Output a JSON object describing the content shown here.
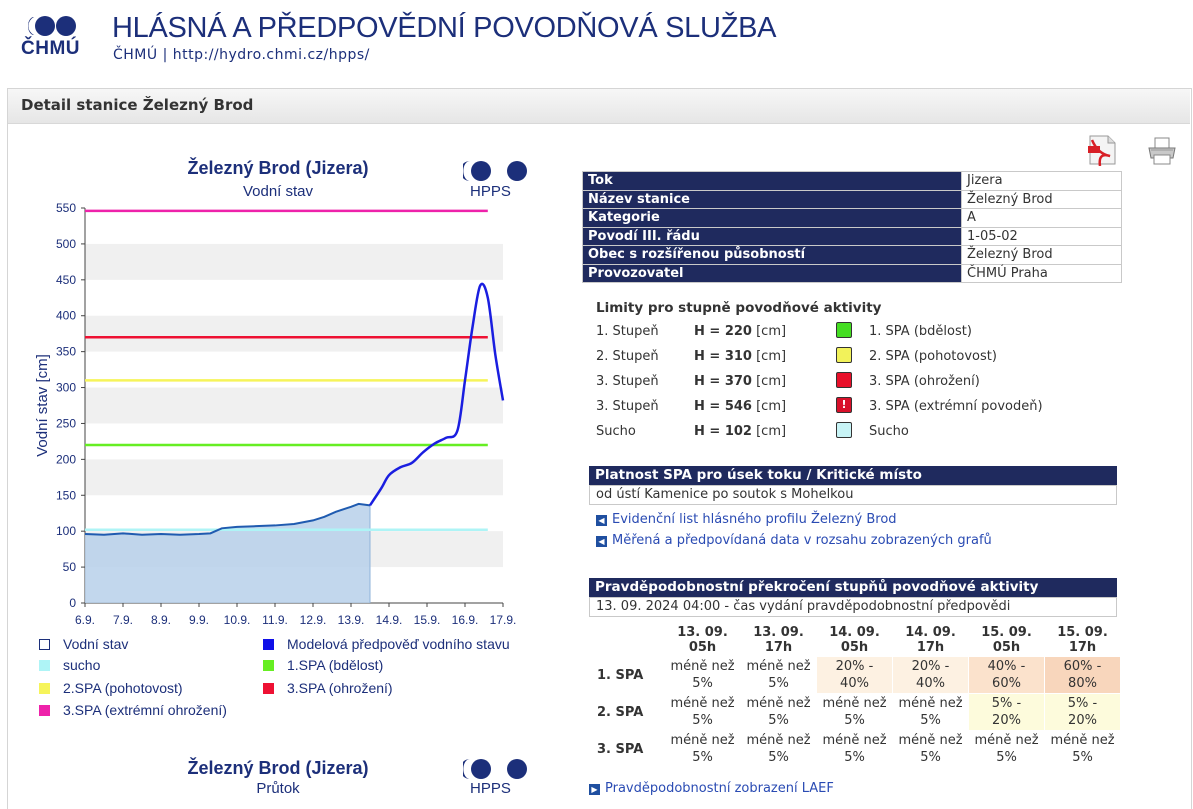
{
  "header": {
    "logo_text": "ČHMÚ",
    "title": "HLÁSNÁ A PŘEDPOVĚDNÍ POVODŇOVÁ SLUŽBA",
    "subtitle": "ČHMÚ   |   http://hydro.chmi.cz/hpps/"
  },
  "panel": {
    "title": "Detail stanice Železný Brod"
  },
  "icons": {
    "pdf": "pdf-icon",
    "print": "printer-icon"
  },
  "station": [
    {
      "key": "Tok",
      "value": "Jizera"
    },
    {
      "key": "Název stanice",
      "value": "Železný Brod"
    },
    {
      "key": "Kategorie",
      "value": "A"
    },
    {
      "key": "Povodí III. řádu",
      "value": "1-05-02"
    },
    {
      "key": "Obec s rozšířenou působností",
      "value": "Železný Brod"
    },
    {
      "key": "Provozovatel",
      "value": "ČHMÚ Praha"
    }
  ],
  "limits": {
    "title": "Limity pro stupně povodňové aktivity",
    "rows": [
      {
        "name": "1. Stupeň",
        "h_label": "H = 220",
        "unit": " [cm]",
        "color": "#44dd22",
        "label": "1. SPA (bdělost)",
        "icon": ""
      },
      {
        "name": "2. Stupeň",
        "h_label": "H = 310",
        "unit": " [cm]",
        "color": "#f2f25a",
        "label": "2. SPA (pohotovost)",
        "icon": ""
      },
      {
        "name": "3. Stupeň",
        "h_label": "H = 370",
        "unit": " [cm]",
        "color": "#e8102a",
        "label": "3. SPA (ohrožení)",
        "icon": ""
      },
      {
        "name": "3. Stupeň",
        "h_label": "H = 546",
        "unit": " [cm]",
        "color": "#d8102a",
        "label": "3. SPA (extrémní povodeň)",
        "icon": "!"
      },
      {
        "name": "Sucho",
        "h_label": "H = 102",
        "unit": " [cm]",
        "color": "#c8f4f6",
        "label": "Sucho",
        "icon": ""
      }
    ]
  },
  "validity": {
    "title": "Platnost SPA pro úsek toku / Kritické místo",
    "text": "od ústí Kamenice po soutok s Mohelkou"
  },
  "links": [
    "Evidenční list hlásného profilu Železný Brod",
    "Měřená a předpovídaná data v rozsahu zobrazených grafů"
  ],
  "probability": {
    "title": "Pravděpodobnostní překročení stupňů povodňové aktivity",
    "issued": "13. 09. 2024 04:00 - čas vydání pravděpodobnostní předpovědi",
    "columns": [
      [
        "13. 09.",
        "05h"
      ],
      [
        "13. 09.",
        "17h"
      ],
      [
        "14. 09.",
        "05h"
      ],
      [
        "14. 09.",
        "17h"
      ],
      [
        "15. 09.",
        "05h"
      ],
      [
        "15. 09.",
        "17h"
      ]
    ],
    "rows": [
      {
        "label": "1. SPA",
        "cells": [
          [
            "méně než",
            "5%"
          ],
          [
            "méně než",
            "5%"
          ],
          [
            "20% -",
            "40%"
          ],
          [
            "20% -",
            "40%"
          ],
          [
            "40% -",
            "60%"
          ],
          [
            "60% -",
            "80%"
          ]
        ],
        "colors": [
          "#ffffff",
          "#ffffff",
          "#fdf1e2",
          "#fdf1e2",
          "#fbe2cc",
          "#f8d6bc"
        ]
      },
      {
        "label": "2. SPA",
        "cells": [
          [
            "méně než",
            "5%"
          ],
          [
            "méně než",
            "5%"
          ],
          [
            "méně než",
            "5%"
          ],
          [
            "méně než",
            "5%"
          ],
          [
            "5% -",
            "20%"
          ],
          [
            "5% -",
            "20%"
          ]
        ],
        "colors": [
          "#ffffff",
          "#ffffff",
          "#ffffff",
          "#ffffff",
          "#fdfbdc",
          "#fdfbdc"
        ]
      },
      {
        "label": "3. SPA",
        "cells": [
          [
            "méně než",
            "5%"
          ],
          [
            "méně než",
            "5%"
          ],
          [
            "méně než",
            "5%"
          ],
          [
            "méně než",
            "5%"
          ],
          [
            "méně než",
            "5%"
          ],
          [
            "méně než",
            "5%"
          ]
        ],
        "colors": [
          "#ffffff",
          "#ffffff",
          "#ffffff",
          "#ffffff",
          "#ffffff",
          "#ffffff"
        ]
      }
    ],
    "link": "Pravděpodobnostní zobrazení LAEF"
  },
  "chart_data": {
    "type": "line",
    "title": "Železný Brod (Jizera)",
    "subtitle": "Vodní stav",
    "brand": "HPPS",
    "ylabel": "Vodní stav [cm]",
    "ylim": [
      0,
      550
    ],
    "yticks": [
      0,
      50,
      100,
      150,
      200,
      250,
      300,
      350,
      400,
      450,
      500,
      550
    ],
    "xticks": [
      "6.9.",
      "7.9.",
      "8.9.",
      "9.9.",
      "10.9.",
      "11.9.",
      "12.9.",
      "13.9.",
      "14.9.",
      "15.9.",
      "16.9.",
      "17.9."
    ],
    "thresholds": [
      {
        "name": "sucho",
        "value": 102,
        "color": "#aef4f6"
      },
      {
        "name": "1.SPA (bdělost)",
        "value": 220,
        "color": "#66ee22"
      },
      {
        "name": "2.SPA (pohotovost)",
        "value": 310,
        "color": "#f6f45a"
      },
      {
        "name": "3.SPA (ohrožení)",
        "value": 370,
        "color": "#ee1133"
      },
      {
        "name": "3.SPA (extrémní ohrožení)",
        "value": 546,
        "color": "#ee22aa"
      }
    ],
    "series": [
      {
        "name": "Vodní stav",
        "color": "#1f5bb0",
        "fill": "#b7d0ea",
        "x": [
          0,
          0.5,
          1,
          1.5,
          2,
          2.5,
          3,
          3.3,
          3.6,
          4,
          4.5,
          5,
          5.5,
          6,
          6.3,
          6.6,
          7,
          7.2,
          7.5
        ],
        "y": [
          96,
          95,
          97,
          95,
          96,
          95,
          96,
          97,
          104,
          106,
          107,
          108,
          110,
          115,
          120,
          127,
          134,
          138,
          136
        ]
      },
      {
        "name": "Modelová předpověď vodního stavu",
        "color": "#1a1ee0",
        "x": [
          7.5,
          7.8,
          8,
          8.3,
          8.6,
          8.9,
          9.2,
          9.5,
          9.8,
          10,
          10.2,
          10.4,
          10.6,
          10.8,
          11
        ],
        "y": [
          136,
          160,
          178,
          189,
          195,
          210,
          222,
          230,
          240,
          310,
          385,
          442,
          425,
          345,
          282
        ]
      }
    ],
    "legend": [
      {
        "name": "Vodní stav",
        "color": "#ffffff",
        "border": "#1c2f7a"
      },
      {
        "name": "Modelová předpověď vodního stavu",
        "color": "#1010e8"
      },
      {
        "name": "sucho",
        "color": "#aef4f6"
      },
      {
        "name": "1.SPA (bdělost)",
        "color": "#66ee22"
      },
      {
        "name": "2.SPA (pohotovost)",
        "color": "#f6f45a"
      },
      {
        "name": "3.SPA (ohrožení)",
        "color": "#ee1133"
      },
      {
        "name": "3.SPA (extrémní ohrožení)",
        "color": "#ee22aa"
      }
    ]
  },
  "chart2": {
    "title": "Železný Brod (Jizera)",
    "subtitle": "Průtok",
    "brand": "HPPS"
  }
}
